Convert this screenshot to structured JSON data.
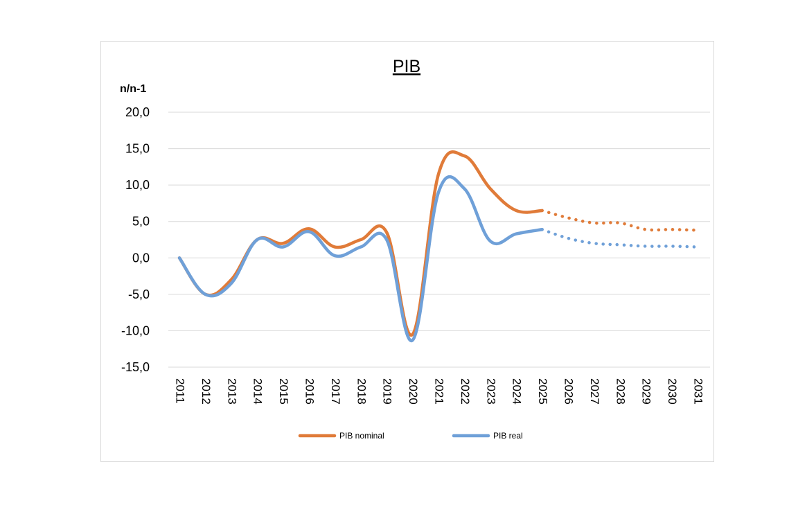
{
  "chart_data": {
    "type": "line",
    "title": "PIB",
    "ylabel": "n/n-1",
    "xlabel": "",
    "ylim": [
      -15,
      20
    ],
    "yticks": [
      "20,0",
      "15,0",
      "10,0",
      "5,0",
      "0,0",
      "-5,0",
      "-10,0",
      "-15,0"
    ],
    "ytick_values": [
      20,
      15,
      10,
      5,
      0,
      -5,
      -10,
      -15
    ],
    "categories": [
      "2011",
      "2012",
      "2013",
      "2014",
      "2015",
      "2016",
      "2017",
      "2018",
      "2019",
      "2020",
      "2021",
      "2022",
      "2023",
      "2024",
      "2025",
      "2026",
      "2027",
      "2028",
      "2029",
      "2030",
      "2031"
    ],
    "grid": true,
    "legend_position": "bottom",
    "forecast_start": "2025",
    "series": [
      {
        "name": "PIB nominal",
        "color": "#E07B39",
        "values": [
          0.0,
          -5.0,
          -3.0,
          2.5,
          2.0,
          4.0,
          1.5,
          2.5,
          3.5,
          -10.5,
          11.5,
          14.0,
          9.5,
          6.5,
          6.5,
          5.5,
          4.8,
          4.8,
          3.9,
          3.9,
          3.8
        ]
      },
      {
        "name": "PIB real",
        "color": "#6FA0D8",
        "values": [
          0.0,
          -5.0,
          -3.5,
          2.5,
          1.5,
          3.6,
          0.3,
          1.5,
          2.5,
          -11.3,
          9.0,
          9.5,
          2.3,
          3.3,
          3.9,
          2.7,
          2.0,
          1.8,
          1.6,
          1.6,
          1.5
        ]
      }
    ]
  }
}
